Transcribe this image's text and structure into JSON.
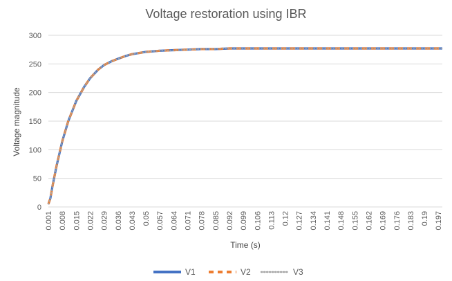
{
  "chart_data": {
    "type": "line",
    "title": "Voltage restoration using IBR",
    "xlabel": "Time (s)",
    "ylabel": "Voltage magnitude",
    "ylim": [
      0,
      300
    ],
    "yticks": [
      "0",
      "50",
      "100",
      "150",
      "200",
      "250",
      "300"
    ],
    "xticks": [
      "0.001",
      "0.008",
      "0.015",
      "0.022",
      "0.029",
      "0.036",
      "0.043",
      "0.05",
      "0.057",
      "0.064",
      "0.071",
      "0.078",
      "0.085",
      "0.092",
      "0.099",
      "0.106",
      "0.113",
      "0.12",
      "0.127",
      "0.134",
      "0.141",
      "0.148",
      "0.155",
      "0.162",
      "0.169",
      "0.176",
      "0.183",
      "0.19",
      "0.197"
    ],
    "grid": true,
    "legend_position": "bottom",
    "x": [
      0.001,
      0.002,
      0.003,
      0.005,
      0.008,
      0.011,
      0.015,
      0.019,
      0.022,
      0.026,
      0.029,
      0.033,
      0.036,
      0.04,
      0.043,
      0.05,
      0.057,
      0.064,
      0.071,
      0.078,
      0.085,
      0.092,
      0.099,
      0.106,
      0.113,
      0.12,
      0.127,
      0.134,
      0.141,
      0.148,
      0.155,
      0.162,
      0.169,
      0.176,
      0.183,
      0.19,
      0.197,
      0.199
    ],
    "series": [
      {
        "name": "V1",
        "color": "#4472C4",
        "style": "solid",
        "values": [
          5,
          15,
          35,
          70,
          115,
          150,
          185,
          210,
          225,
          240,
          248,
          255,
          259,
          264,
          267,
          271,
          273,
          274,
          275,
          276,
          276,
          277,
          277,
          277,
          277,
          277,
          277,
          277,
          277,
          277,
          277,
          277,
          277,
          277,
          277,
          277,
          277,
          277
        ]
      },
      {
        "name": "V2",
        "color": "#ED7D31",
        "style": "dashed",
        "values": [
          5,
          15,
          35,
          70,
          115,
          150,
          185,
          210,
          225,
          240,
          248,
          255,
          259,
          264,
          267,
          271,
          273,
          274,
          275,
          276,
          276,
          277,
          277,
          277,
          277,
          277,
          277,
          277,
          277,
          277,
          277,
          277,
          277,
          277,
          277,
          277,
          277,
          277
        ]
      },
      {
        "name": "V3",
        "color": "#A5A5A5",
        "style": "dotted",
        "values": [
          5,
          15,
          35,
          70,
          115,
          150,
          185,
          210,
          225,
          240,
          248,
          255,
          259,
          264,
          267,
          271,
          273,
          274,
          275,
          276,
          276,
          277,
          277,
          277,
          277,
          277,
          277,
          277,
          277,
          277,
          277,
          277,
          277,
          277,
          277,
          277,
          277,
          277
        ]
      }
    ]
  }
}
